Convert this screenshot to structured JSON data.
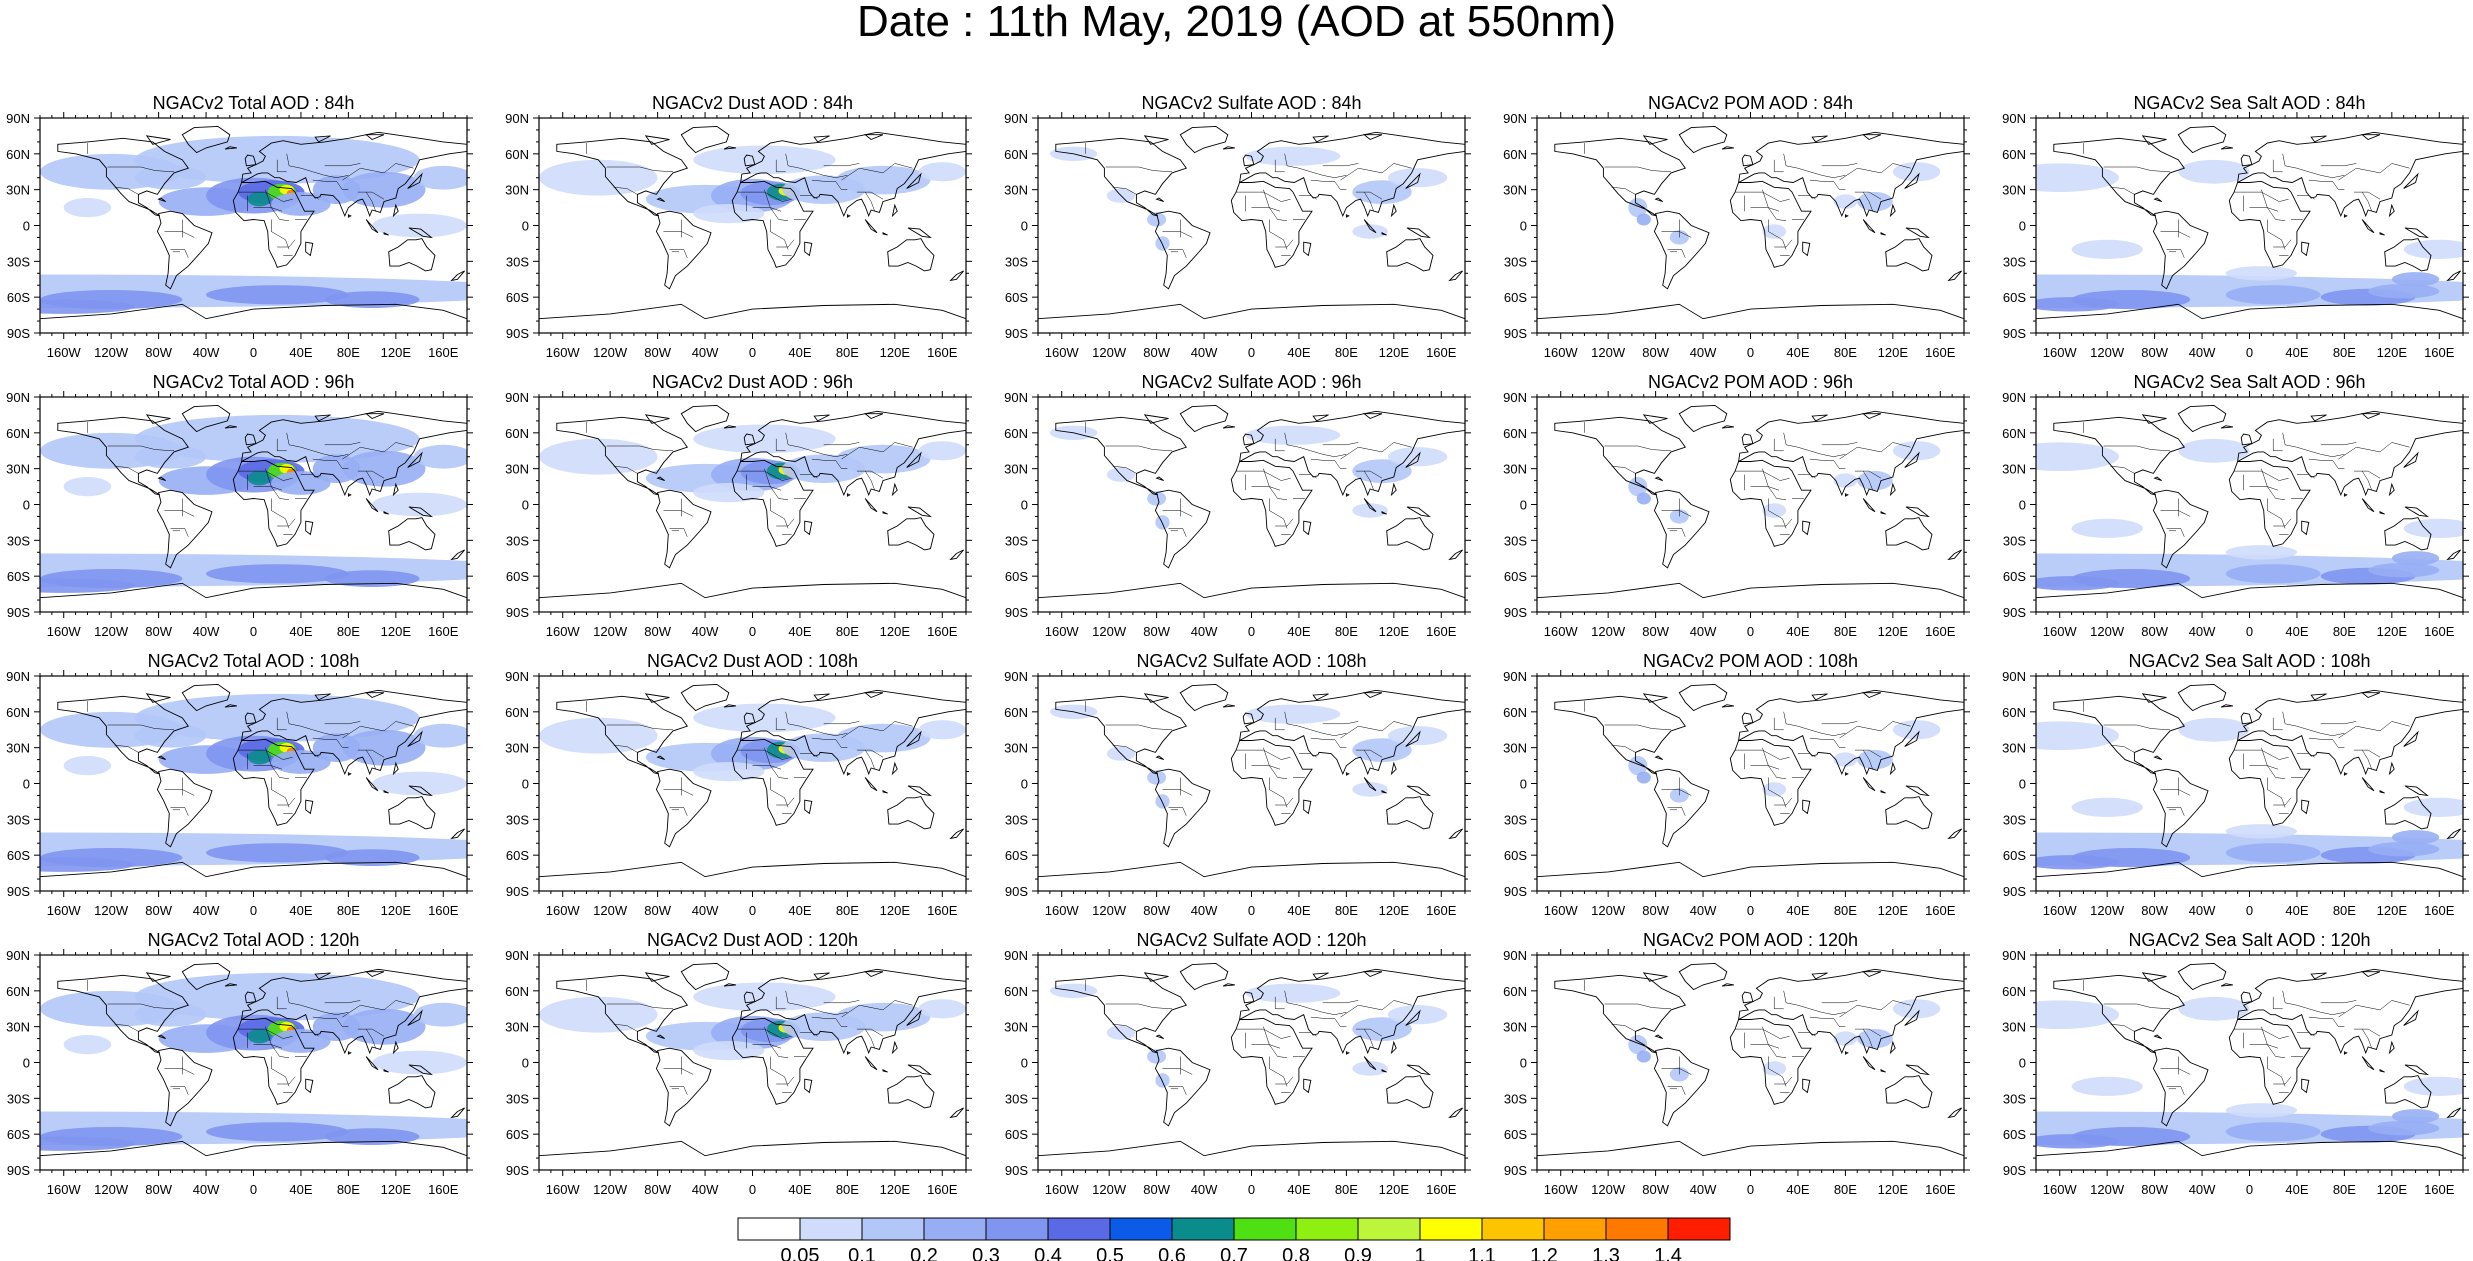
{
  "title": "Date : 11th May, 2019 (AOD at 550nm)",
  "columns": [
    {
      "product": "total",
      "titles": [
        "NGACv2 Total AOD : 84h",
        "NGACv2 Total AOD : 96h",
        "NGACv2 Total AOD : 108h",
        "NGACv2 Total AOD : 120h"
      ]
    },
    {
      "product": "dust",
      "titles": [
        "NGACv2 Dust AOD : 84h",
        "NGACv2 Dust AOD : 96h",
        "NGACv2 Dust AOD : 108h",
        "NGACv2 Dust AOD : 120h"
      ]
    },
    {
      "product": "sulfate",
      "titles": [
        "NGACv2 Sulfate AOD : 84h",
        "NGACv2 Sulfate AOD : 96h",
        "NGACv2 Sulfate AOD : 108h",
        "NGACv2 Sulfate AOD : 120h"
      ]
    },
    {
      "product": "pom",
      "titles": [
        "NGACv2 POM AOD : 84h",
        "NGACv2 POM AOD : 96h",
        "NGACv2 POM AOD : 108h",
        "NGACv2 POM AOD : 120h"
      ]
    },
    {
      "product": "seasalt",
      "titles": [
        "NGACv2 Sea Salt AOD : 84h",
        "NGACv2 Sea Salt AOD : 96h",
        "NGACv2 Sea Salt AOD : 108h",
        "NGACv2 Sea Salt  AOD : 120h"
      ]
    }
  ],
  "lat_ticks": [
    "90N",
    "60N",
    "30N",
    "0",
    "30S",
    "60S",
    "90S"
  ],
  "lon_ticks": [
    "160W",
    "120W",
    "80W",
    "40W",
    "0",
    "40E",
    "80E",
    "120E",
    "160E"
  ],
  "colorbar": {
    "labels": [
      "0.05",
      "0.1",
      "0.2",
      "0.3",
      "0.4",
      "0.5",
      "0.6",
      "0.7",
      "0.8",
      "0.9",
      "1",
      "1.1",
      "1.2",
      "1.3",
      "1.4"
    ],
    "colors": [
      "#ffffff",
      "#cfdcfb",
      "#b2c7f7",
      "#97aef4",
      "#7f95f0",
      "#5a6ae6",
      "#0a5ce8",
      "#0b8c8c",
      "#4ee012",
      "#8ef010",
      "#bdf53a",
      "#ffff00",
      "#ffc400",
      "#ffa000",
      "#ff7800",
      "#ff1e00"
    ]
  }
}
